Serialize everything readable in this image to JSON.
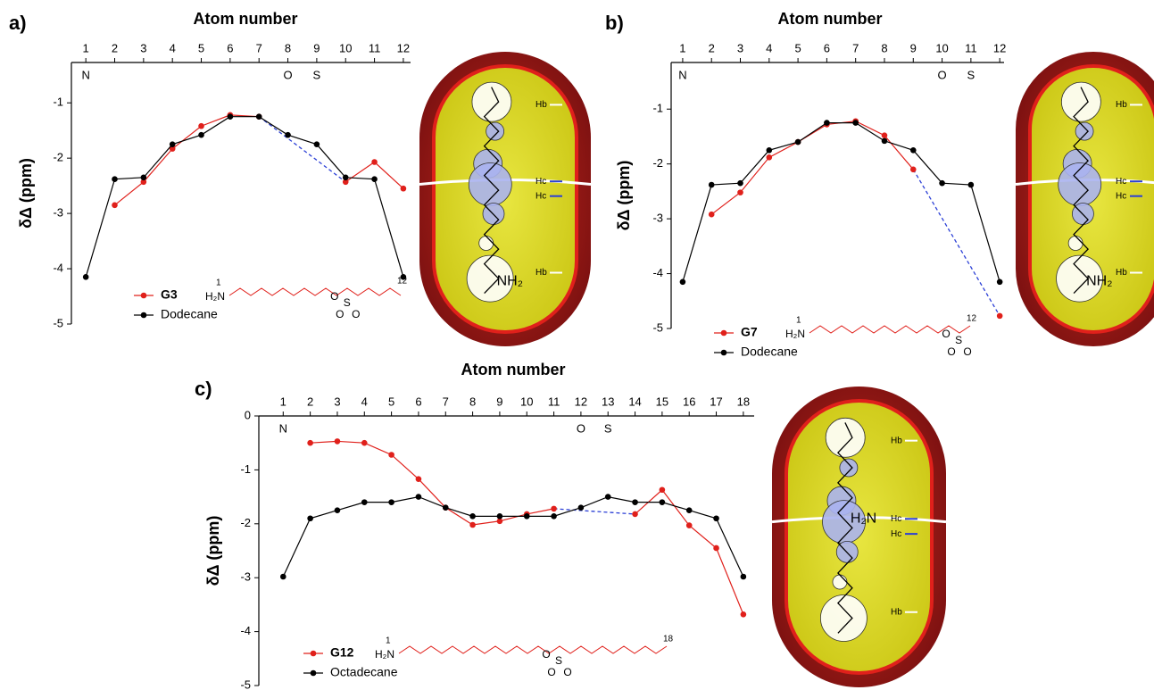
{
  "panel_labels": [
    "a)",
    "b)",
    "c)"
  ],
  "chart_data": [
    {
      "type": "line",
      "x_label": "Atom number",
      "y_label": "δΔ (ppm)",
      "x": [
        1,
        2,
        3,
        4,
        5,
        6,
        7,
        8,
        9,
        10,
        11,
        12
      ],
      "xlim": [
        0.5,
        12.25
      ],
      "xticks": [
        1,
        2,
        3,
        4,
        5,
        6,
        7,
        8,
        9,
        10,
        11,
        12
      ],
      "ylim": [
        -5,
        -0.27
      ],
      "yticks": [
        -5,
        -4,
        -3,
        -2,
        -1
      ],
      "series": [
        {
          "name": "G3",
          "color": "#e0201b",
          "values": [
            null,
            -2.85,
            -2.43,
            -1.83,
            -1.42,
            -1.22,
            -1.25,
            null,
            null,
            -2.43,
            -2.07,
            -2.55
          ]
        },
        {
          "name": "Dodecane",
          "color": "#000000",
          "values": [
            -4.15,
            -2.38,
            -2.35,
            -1.75,
            -1.58,
            -1.25,
            -1.25,
            -1.58,
            -1.75,
            -2.35,
            -2.38,
            -4.15
          ]
        }
      ],
      "gap_color": "#2b3fd6",
      "annotations": [
        {
          "x": 1,
          "text": "N"
        },
        {
          "x": 8,
          "text": "O"
        },
        {
          "x": 9,
          "text": "S"
        }
      ],
      "molecule_labels": [
        "H₂N",
        "1",
        "O",
        "S",
        "O",
        "O",
        "12"
      ],
      "diagram_labels": [
        "Hb",
        "Hc",
        "Hc",
        "Hb",
        "NH₂"
      ]
    },
    {
      "type": "line",
      "x_label": "Atom number",
      "y_label": "δΔ (ppm)",
      "x": [
        1,
        2,
        3,
        4,
        5,
        6,
        7,
        8,
        9,
        10,
        11,
        12
      ],
      "xlim": [
        0.6,
        12.15
      ],
      "xticks": [
        1,
        2,
        3,
        4,
        5,
        6,
        7,
        8,
        9,
        10,
        11,
        12
      ],
      "ylim": [
        -5,
        -0.15
      ],
      "yticks": [
        -5,
        -4,
        -3,
        -2,
        -1
      ],
      "series": [
        {
          "name": "G7",
          "color": "#e0201b",
          "values": [
            null,
            -2.92,
            -2.52,
            -1.88,
            -1.6,
            -1.28,
            -1.22,
            -1.48,
            -2.1,
            null,
            null,
            -4.77
          ]
        },
        {
          "name": "Dodecane",
          "color": "#000000",
          "values": [
            -4.15,
            -2.38,
            -2.35,
            -1.75,
            -1.6,
            -1.25,
            -1.25,
            -1.58,
            -1.75,
            -2.35,
            -2.38,
            -4.15
          ]
        }
      ],
      "gap_color": "#2b3fd6",
      "annotations": [
        {
          "x": 1,
          "text": "N"
        },
        {
          "x": 10,
          "text": "O"
        },
        {
          "x": 11,
          "text": "S"
        }
      ],
      "molecule_labels": [
        "H₂N",
        "1",
        "O",
        "S",
        "O",
        "O",
        "12"
      ],
      "diagram_labels": [
        "Hb",
        "Hc",
        "Hc",
        "Hb",
        "NH₂"
      ]
    },
    {
      "type": "line",
      "x_label": "Atom number",
      "y_label": "δΔ (ppm)",
      "x": [
        1,
        2,
        3,
        4,
        5,
        6,
        7,
        8,
        9,
        10,
        11,
        12,
        13,
        14,
        15,
        16,
        17,
        18
      ],
      "xlim": [
        0.1,
        18.4
      ],
      "xticks": [
        1,
        2,
        3,
        4,
        5,
        6,
        7,
        8,
        9,
        10,
        11,
        12,
        13,
        14,
        15,
        16,
        17,
        18
      ],
      "ylim": [
        -5,
        0
      ],
      "yticks": [
        -5,
        -4,
        -3,
        -2,
        -1,
        0
      ],
      "series": [
        {
          "name": "G12",
          "color": "#e0201b",
          "values": [
            null,
            -0.5,
            -0.47,
            -0.5,
            -0.72,
            -1.17,
            -1.7,
            -2.02,
            -1.95,
            -1.82,
            -1.72,
            null,
            null,
            -1.82,
            -1.37,
            -2.03,
            -2.45,
            -3.68
          ]
        },
        {
          "name": "Octadecane",
          "color": "#000000",
          "values": [
            -2.98,
            -1.9,
            -1.75,
            -1.6,
            -1.6,
            -1.5,
            -1.7,
            -1.86,
            -1.86,
            -1.86,
            -1.86,
            -1.7,
            -1.5,
            -1.6,
            -1.6,
            -1.75,
            -1.9,
            -2.98
          ]
        }
      ],
      "gap_color": "#2b3fd6",
      "annotations": [
        {
          "x": 1,
          "text": "N"
        },
        {
          "x": 12,
          "text": "O"
        },
        {
          "x": 13,
          "text": "S"
        }
      ],
      "molecule_labels": [
        "H₂N",
        "1",
        "O",
        "S",
        "O",
        "O",
        "18"
      ],
      "diagram_labels": [
        "Hb",
        "Hc",
        "Hc",
        "Hb",
        "H₂N"
      ]
    }
  ]
}
